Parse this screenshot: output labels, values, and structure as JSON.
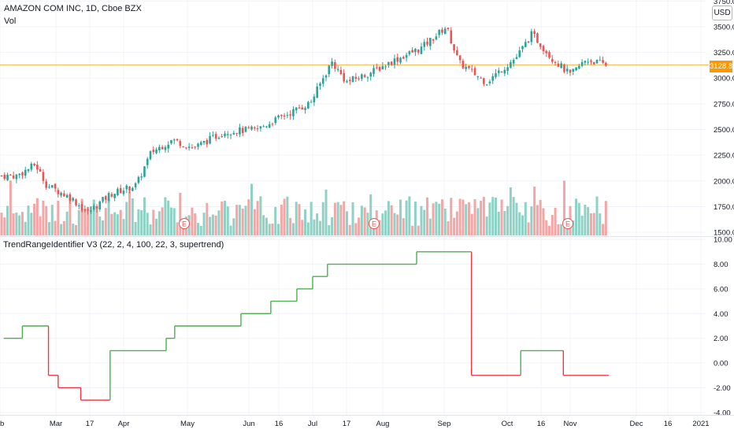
{
  "header": {
    "title": "AMAZON COM INC, 1D, Cboe BZX",
    "volume_label": "Vol",
    "currency": "USD",
    "indicator_label": "TrendRangeIdentifier V3 (22, 2, 4, 100, 22, 3, supertrend)"
  },
  "colors": {
    "up": "#26a69a",
    "down": "#ef5350",
    "vol_up": "#8fd2c5",
    "vol_down": "#f4a6a6",
    "line_up": "#4caf50",
    "line_down": "#f23645",
    "last_price": "#ff9800",
    "grid": "#f0f3fa",
    "separator": "#e0e3eb"
  },
  "icons": [
    "earnings-marker-icon"
  ],
  "chart_data": [
    {
      "type": "candlestick",
      "title": "AMAZON COM INC, 1D, Cboe BZX",
      "ylim": [
        1470,
        3760
      ],
      "y_ticks": [
        "3750.00",
        "3500.00",
        "3250.00",
        "3000.00",
        "2750.00",
        "2500.00",
        "2250.00",
        "2000.00",
        "1750.00",
        "1500.00"
      ],
      "last_price": "3128.81",
      "x_ticks": [
        "b",
        "Mar",
        "17",
        "Apr",
        "May",
        "Jun",
        "16",
        "Jul",
        "17",
        "Aug",
        "Sep",
        "Oct",
        "16",
        "Nov",
        "Dec",
        "16",
        "2021"
      ],
      "earnings_markers": [
        "E",
        "E",
        "E"
      ],
      "price_path": [
        {
          "date": "2020-02-10",
          "close": 2050
        },
        {
          "date": "2020-02-20",
          "close": 2160
        },
        {
          "date": "2020-02-26",
          "close": 1960
        },
        {
          "date": "2020-03-09",
          "close": 1830
        },
        {
          "date": "2020-03-16",
          "close": 1690
        },
        {
          "date": "2020-03-26",
          "close": 1870
        },
        {
          "date": "2020-04-07",
          "close": 1960
        },
        {
          "date": "2020-04-14",
          "close": 2280
        },
        {
          "date": "2020-04-24",
          "close": 2400
        },
        {
          "date": "2020-05-04",
          "close": 2320
        },
        {
          "date": "2020-05-20",
          "close": 2480
        },
        {
          "date": "2020-06-05",
          "close": 2500
        },
        {
          "date": "2020-06-15",
          "close": 2600
        },
        {
          "date": "2020-06-30",
          "close": 2760
        },
        {
          "date": "2020-07-10",
          "close": 3160
        },
        {
          "date": "2020-07-17",
          "close": 2960
        },
        {
          "date": "2020-07-28",
          "close": 3050
        },
        {
          "date": "2020-08-07",
          "close": 3160
        },
        {
          "date": "2020-08-21",
          "close": 3290
        },
        {
          "date": "2020-09-02",
          "close": 3500
        },
        {
          "date": "2020-09-08",
          "close": 3150
        },
        {
          "date": "2020-09-21",
          "close": 2960
        },
        {
          "date": "2020-10-05",
          "close": 3200
        },
        {
          "date": "2020-10-12",
          "close": 3430
        },
        {
          "date": "2020-10-22",
          "close": 3200
        },
        {
          "date": "2020-11-02",
          "close": 3030
        },
        {
          "date": "2020-11-09",
          "close": 3180
        },
        {
          "date": "2020-11-18",
          "close": 3128.81
        }
      ]
    },
    {
      "type": "step-line",
      "title": "TrendRangeIdentifier V3 (22, 2, 4, 100, 22, 3, supertrend)",
      "ylim": [
        -4.2,
        10.2
      ],
      "y_ticks": [
        "10.00",
        "8.00",
        "6.00",
        "4.00",
        "2.00",
        "0.00",
        "-2.00",
        "-4.00"
      ],
      "steps": [
        {
          "from": "2020-02-03",
          "to": "2020-02-13",
          "value": 2
        },
        {
          "from": "2020-02-13",
          "to": "2020-02-27",
          "value": 3
        },
        {
          "from": "2020-02-27",
          "to": "2020-03-03",
          "value": -1
        },
        {
          "from": "2020-03-03",
          "to": "2020-03-13",
          "value": -2
        },
        {
          "from": "2020-03-13",
          "to": "2020-03-26",
          "value": -3
        },
        {
          "from": "2020-03-26",
          "to": "2020-04-21",
          "value": 1
        },
        {
          "from": "2020-04-21",
          "to": "2020-04-25",
          "value": 2
        },
        {
          "from": "2020-04-25",
          "to": "2020-05-28",
          "value": 3
        },
        {
          "from": "2020-05-28",
          "to": "2020-06-12",
          "value": 4
        },
        {
          "from": "2020-06-12",
          "to": "2020-06-24",
          "value": 5
        },
        {
          "from": "2020-06-24",
          "to": "2020-07-01",
          "value": 6
        },
        {
          "from": "2020-07-01",
          "to": "2020-07-08",
          "value": 7
        },
        {
          "from": "2020-07-08",
          "to": "2020-08-19",
          "value": 8
        },
        {
          "from": "2020-08-19",
          "to": "2020-09-14",
          "value": 9
        },
        {
          "from": "2020-09-14",
          "to": "2020-10-07",
          "value": -1
        },
        {
          "from": "2020-10-07",
          "to": "2020-10-29",
          "value": 1
        },
        {
          "from": "2020-10-29",
          "to": "2020-11-19",
          "value": -1
        }
      ]
    }
  ]
}
